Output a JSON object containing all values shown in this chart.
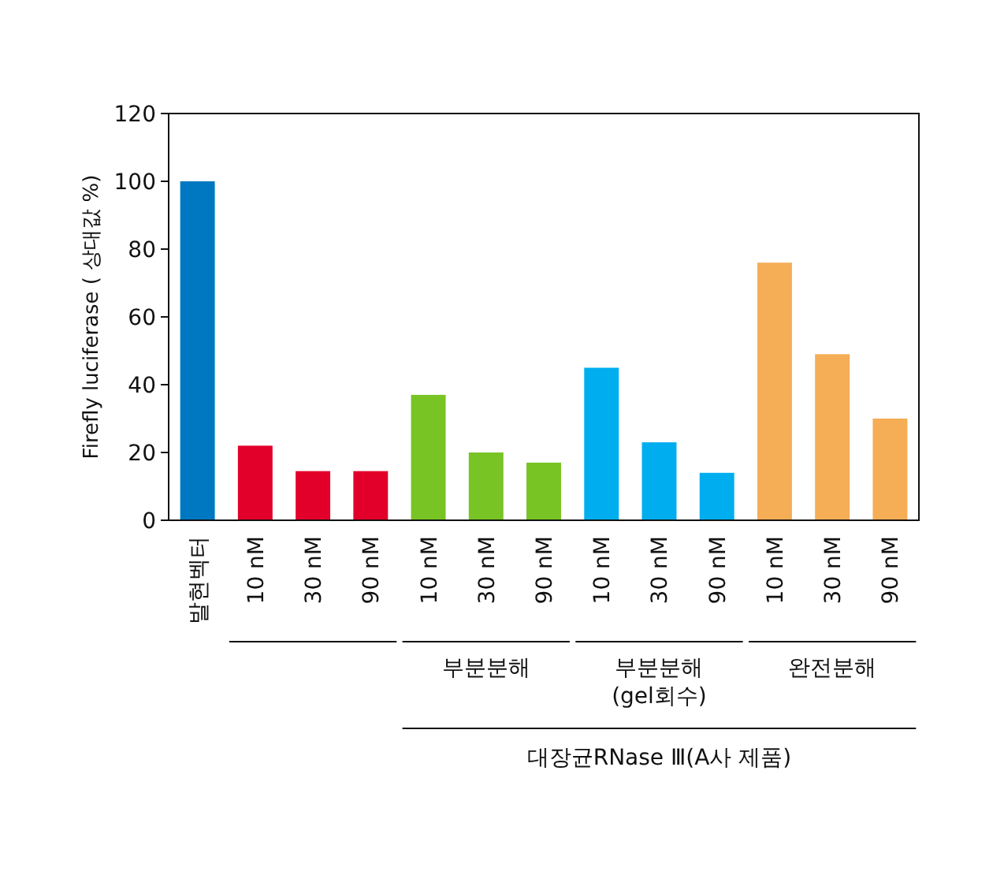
{
  "chart_data": {
    "type": "bar",
    "ylabel": "Firefly luciferase ( 상대값 %)",
    "categories": [
      "발현벡터",
      "10 nM",
      "30 nM",
      "90 nM",
      "10 nM",
      "30 nM",
      "90 nM",
      "10 nM",
      "30 nM",
      "90 nM",
      "10 nM",
      "30 nM",
      "90 nM"
    ],
    "values": [
      100,
      22,
      14.5,
      14.5,
      37,
      20,
      17,
      45,
      23,
      14,
      76,
      49,
      30
    ],
    "colors": [
      "#0078c1",
      "#e2002b",
      "#e2002b",
      "#e2002b",
      "#77c424",
      "#77c424",
      "#77c424",
      "#00aeef",
      "#00aeef",
      "#00aeef",
      "#f5ad56",
      "#f5ad56",
      "#f5ad56"
    ],
    "ylim": [
      0,
      120
    ],
    "yticks": [
      0,
      20,
      40,
      60,
      80,
      100,
      120
    ],
    "annotations": [
      "부분분해",
      "부분분해\n(gel회수)",
      "완전분해",
      "대장균RNase Ⅲ(A사 제품)"
    ]
  }
}
